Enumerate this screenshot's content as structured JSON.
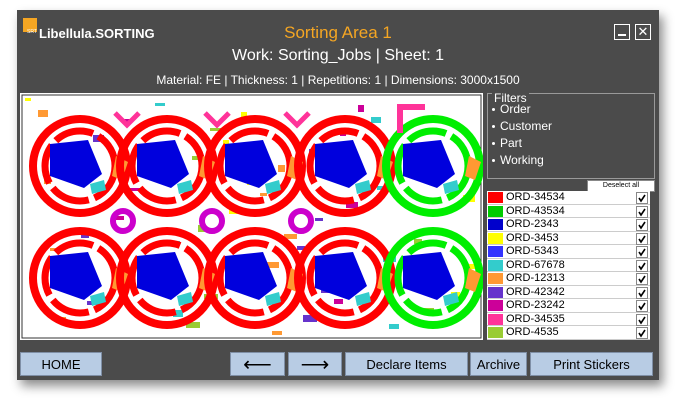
{
  "header": {
    "logo": "Libellula.SORTING",
    "logo_badge": "SRT",
    "title": "Sorting Area 1",
    "work": "Work: Sorting_Jobs | Sheet: 1",
    "info": "Material: FE | Thickness: 1 | Repetitions: 1 | Dimensions: 3000x1500"
  },
  "filters": {
    "title": "Filters",
    "items": [
      "Order",
      "Customer",
      "Part",
      "Working"
    ]
  },
  "deselect": "Deselect all",
  "orders": [
    {
      "name": "ORD-34534",
      "color": "#ff0000"
    },
    {
      "name": "ORD-43534",
      "color": "#00cc00"
    },
    {
      "name": "ORD-2343",
      "color": "#0000cc"
    },
    {
      "name": "ORD-3453",
      "color": "#ffff00"
    },
    {
      "name": "ORD-5343",
      "color": "#3333ff"
    },
    {
      "name": "ORD-67678",
      "color": "#33cccc"
    },
    {
      "name": "ORD-12313",
      "color": "#ff9933"
    },
    {
      "name": "ORD-42342",
      "color": "#6633cc"
    },
    {
      "name": "ORD-23242",
      "color": "#cc0099"
    },
    {
      "name": "ORD-34535",
      "color": "#ff3399"
    },
    {
      "name": "ORD-4535",
      "color": "#99cc33"
    }
  ],
  "buttons": {
    "home": "HOME",
    "back": "⟵",
    "forward": "⟶",
    "declare": "Declare Items",
    "archive": "Archive",
    "print": "Print Stickers"
  }
}
